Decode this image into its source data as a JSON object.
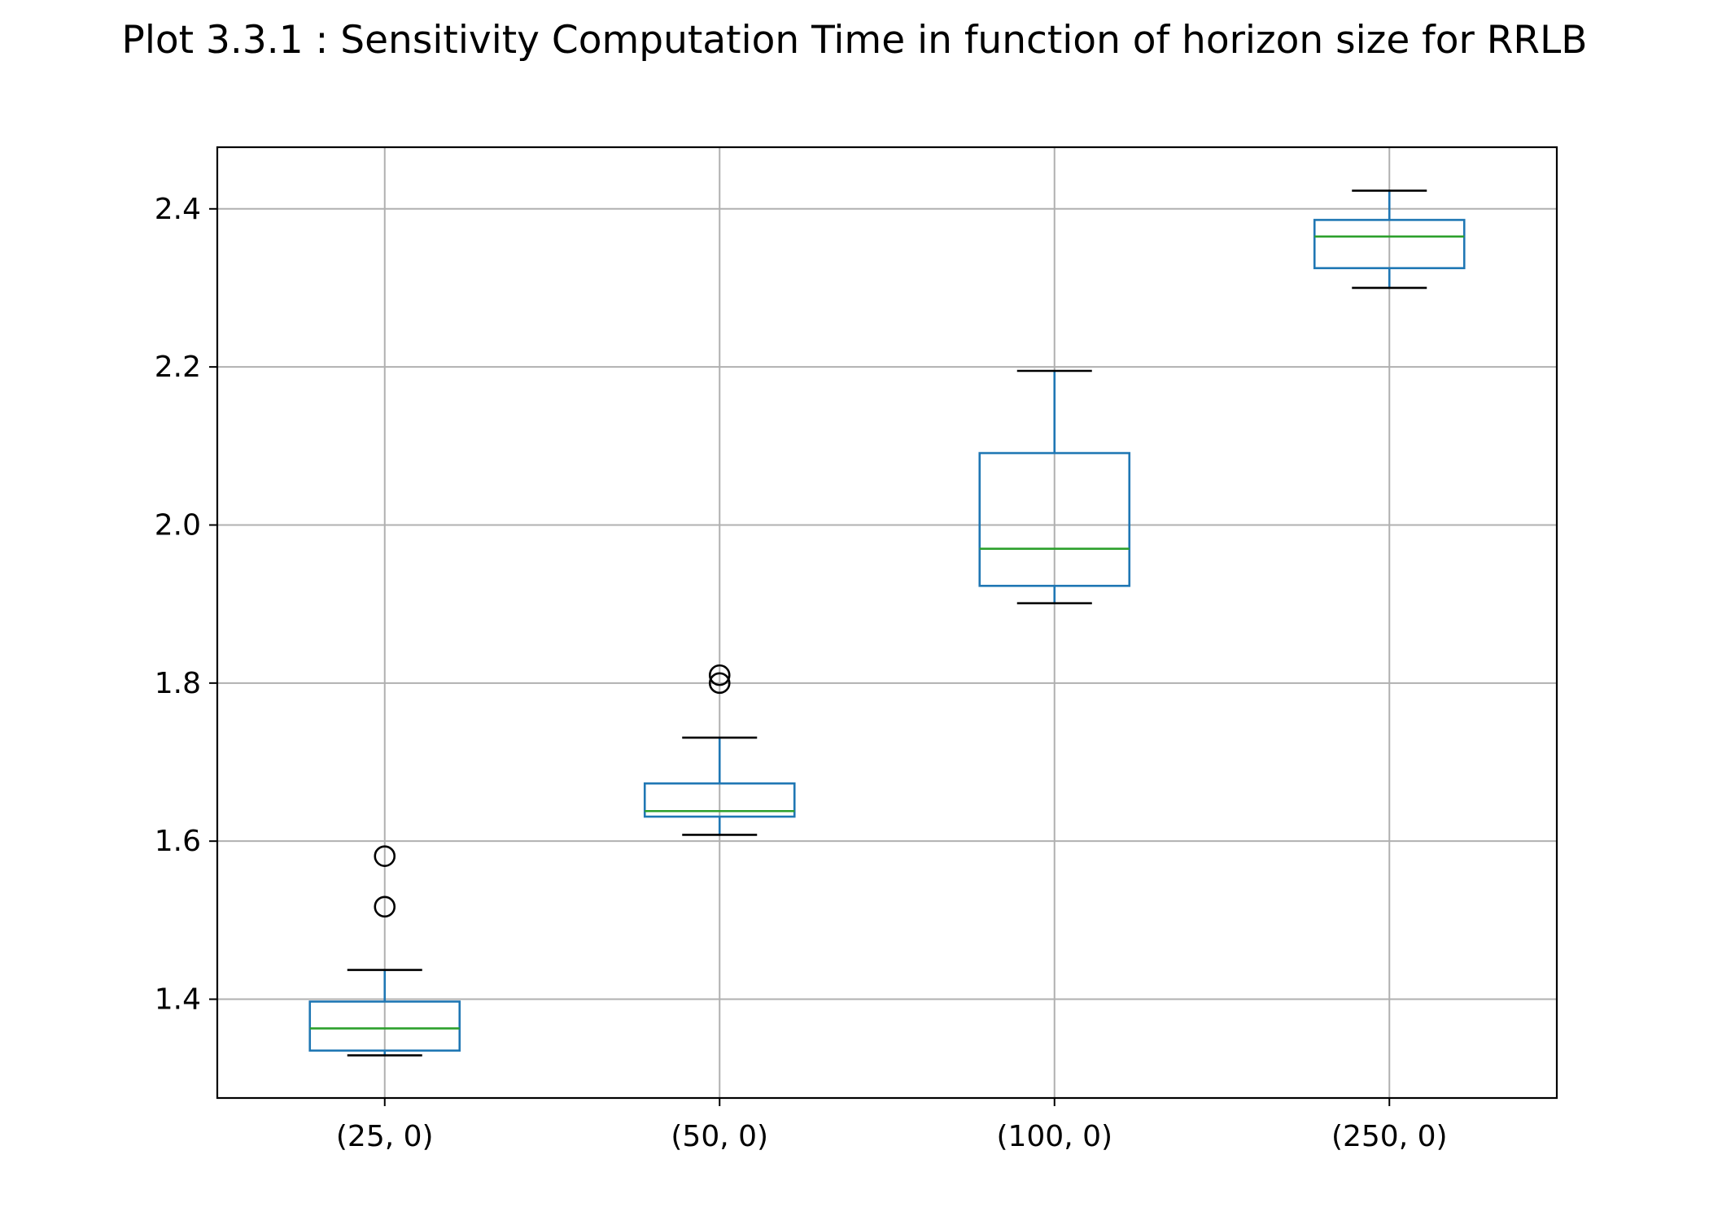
{
  "chart_data": {
    "type": "box",
    "title": "Plot 3.3.1 : Sensitivity Computation Time in function of horizon size for RRLB",
    "xlabel": "",
    "ylabel": "",
    "categories": [
      "(25, 0)",
      "(50, 0)",
      "(100, 0)",
      "(250, 0)"
    ],
    "ylim": [
      1.275,
      2.478
    ],
    "yticks": [
      1.4,
      1.6,
      1.8,
      2.0,
      2.2,
      2.4
    ],
    "ytick_labels": [
      "1.4",
      "1.6",
      "1.8",
      "2.0",
      "2.2",
      "2.4"
    ],
    "grid": true,
    "boxes": [
      {
        "category": "(25, 0)",
        "whisker_low": 1.329,
        "q1": 1.335,
        "median": 1.363,
        "q3": 1.397,
        "whisker_high": 1.437,
        "outliers": [
          1.517,
          1.581
        ]
      },
      {
        "category": "(50, 0)",
        "whisker_low": 1.608,
        "q1": 1.631,
        "median": 1.638,
        "q3": 1.673,
        "whisker_high": 1.731,
        "outliers": [
          1.8,
          1.81
        ]
      },
      {
        "category": "(100, 0)",
        "whisker_low": 1.901,
        "q1": 1.923,
        "median": 1.97,
        "q3": 2.091,
        "whisker_high": 2.195,
        "outliers": []
      },
      {
        "category": "(250, 0)",
        "whisker_low": 2.3,
        "q1": 2.325,
        "median": 2.365,
        "q3": 2.386,
        "whisker_high": 2.423,
        "outliers": []
      }
    ],
    "colors": {
      "box": "#1f77b4",
      "median": "#2ca02c",
      "whisker_cap": "#000000",
      "grid": "#b0b0b0",
      "outlier": "#000000"
    }
  }
}
